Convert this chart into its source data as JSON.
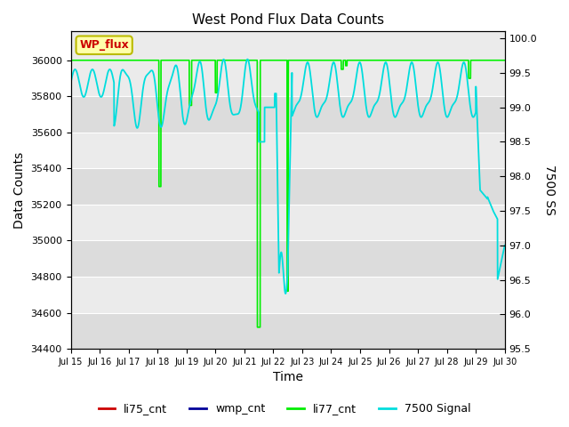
{
  "title": "West Pond Flux Data Counts",
  "xlabel": "Time",
  "ylabel_left": "Data Counts",
  "ylabel_right": "7500 SS",
  "ylim_left": [
    34400,
    36160
  ],
  "ylim_right": [
    95.5,
    100.1
  ],
  "yticks_left": [
    34400,
    34600,
    34800,
    35000,
    35200,
    35400,
    35600,
    35800,
    36000
  ],
  "yticks_right": [
    95.5,
    96.0,
    96.5,
    97.0,
    97.5,
    98.0,
    98.5,
    99.0,
    99.5,
    100.0
  ],
  "xtick_labels": [
    "Jul 15",
    "Jul 16",
    "Jul 17",
    "Jul 18",
    "Jul 19",
    "Jul 20",
    "Jul 21",
    "Jul 22",
    "Jul 23",
    "Jul 24",
    "Jul 25",
    "Jul 26",
    "Jul 27",
    "Jul 28",
    "Jul 29",
    "Jul 30"
  ],
  "wp_flux_label": "WP_flux",
  "legend_labels": [
    "li75_cnt",
    "wmp_cnt",
    "li77_cnt",
    "7500 Signal"
  ],
  "colors": {
    "li77_cnt": "#00ee00",
    "signal_7500": "#00dddd",
    "bg_dark": "#dcdcdc",
    "bg_light": "#ebebeb",
    "wp_flux_box_fill": "#ffffaa",
    "wp_flux_box_edge": "#bbbb00",
    "wp_flux_text": "#cc0000",
    "li75_cnt": "#cc0000",
    "wmp_cnt": "#000099"
  }
}
